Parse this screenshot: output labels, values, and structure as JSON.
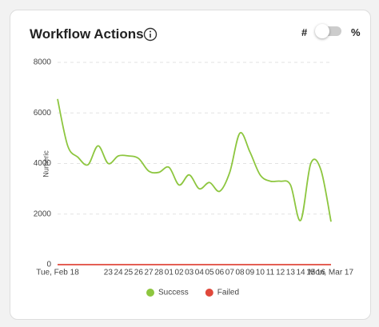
{
  "title": "Workflow Actions",
  "toggle": {
    "left": "#",
    "right": "%"
  },
  "chart_data": {
    "type": "line",
    "y_label": "Numeric",
    "categories": [
      "Tue, Feb 18",
      null,
      null,
      null,
      null,
      "23",
      "24",
      "25",
      "26",
      "27",
      "28",
      "01",
      "02",
      "03",
      "04",
      "05",
      "06",
      "07",
      "08",
      "09",
      "10",
      "11",
      "12",
      "13",
      "14",
      "15",
      "16",
      "Mon, Mar 17"
    ],
    "series": [
      {
        "name": "Success",
        "color": "#8dc63f",
        "values": [
          6550,
          4700,
          4250,
          3950,
          4700,
          4000,
          4300,
          4300,
          4200,
          3700,
          3650,
          3850,
          3150,
          3550,
          3000,
          3250,
          2900,
          3650,
          5200,
          4450,
          3550,
          3300,
          3300,
          3150,
          1750,
          4000,
          3750,
          1700
        ]
      },
      {
        "name": "Failed",
        "color": "#e0483b",
        "values": [
          0,
          0,
          0,
          0,
          0,
          0,
          0,
          0,
          0,
          0,
          0,
          0,
          0,
          0,
          0,
          0,
          0,
          0,
          0,
          0,
          0,
          0,
          0,
          0,
          0,
          0,
          0,
          0
        ]
      }
    ],
    "ylim": [
      0,
      8000
    ],
    "yticks": [
      0,
      2000,
      4000,
      6000,
      8000
    ],
    "grid": true
  }
}
